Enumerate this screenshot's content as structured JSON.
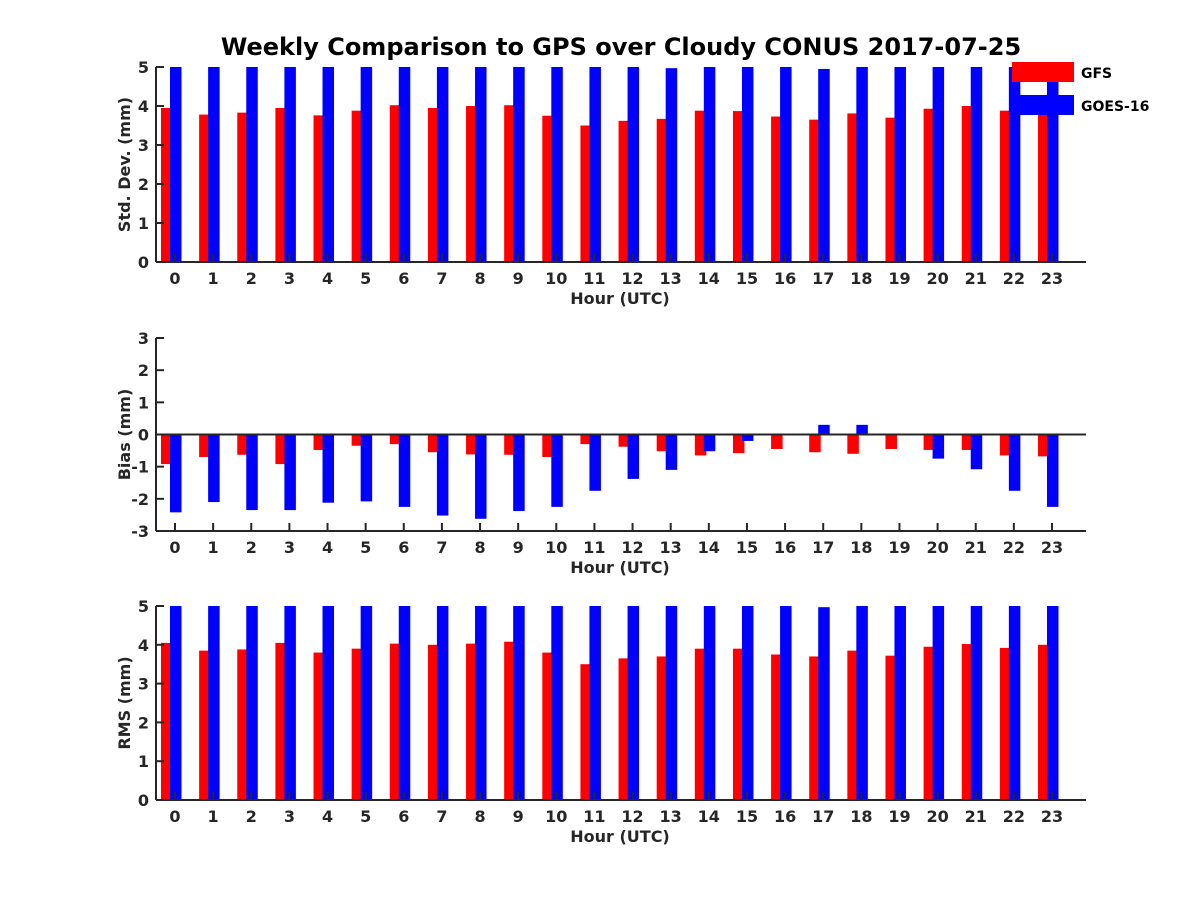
{
  "chart_data": [
    {
      "type": "bar",
      "title": "Weekly Comparison to GPS over Cloudy CONUS 2017-07-25",
      "xlabel": "Hour (UTC)",
      "ylabel": "Std. Dev. (mm)",
      "ylim": [
        0,
        5
      ],
      "yticks": [
        0,
        1,
        2,
        3,
        4,
        5
      ],
      "categories": [
        "0",
        "1",
        "2",
        "3",
        "4",
        "5",
        "6",
        "7",
        "8",
        "9",
        "10",
        "11",
        "12",
        "13",
        "14",
        "15",
        "16",
        "17",
        "18",
        "19",
        "20",
        "21",
        "22",
        "23"
      ],
      "legend": "top-right",
      "series": [
        {
          "name": "GFS",
          "color": "#ff0000",
          "values": [
            3.95,
            3.78,
            3.83,
            3.95,
            3.76,
            3.88,
            4.02,
            3.95,
            4.0,
            4.02,
            3.75,
            3.5,
            3.62,
            3.67,
            3.88,
            3.87,
            3.73,
            3.65,
            3.81,
            3.7,
            3.93,
            4.0,
            3.88,
            3.85
          ]
        },
        {
          "name": "GOES-16",
          "color": "#0000ff",
          "values": [
            5,
            5,
            5,
            5,
            5,
            5,
            5,
            5,
            5,
            5,
            5,
            5,
            5,
            4.97,
            5,
            5,
            5,
            4.95,
            5,
            5,
            5,
            5,
            5,
            5
          ]
        }
      ]
    },
    {
      "type": "bar",
      "title": "",
      "xlabel": "Hour (UTC)",
      "ylabel": "Bias (mm)",
      "ylim": [
        -3,
        3
      ],
      "yticks": [
        -3,
        -2,
        -1,
        0,
        1,
        2,
        3
      ],
      "categories": [
        "0",
        "1",
        "2",
        "3",
        "4",
        "5",
        "6",
        "7",
        "8",
        "9",
        "10",
        "11",
        "12",
        "13",
        "14",
        "15",
        "16",
        "17",
        "18",
        "19",
        "20",
        "21",
        "22",
        "23"
      ],
      "series": [
        {
          "name": "GFS",
          "color": "#ff0000",
          "values": [
            -0.92,
            -0.7,
            -0.63,
            -0.92,
            -0.48,
            -0.35,
            -0.3,
            -0.55,
            -0.62,
            -0.63,
            -0.7,
            -0.3,
            -0.38,
            -0.52,
            -0.65,
            -0.58,
            -0.45,
            -0.55,
            -0.6,
            -0.45,
            -0.48,
            -0.48,
            -0.65,
            -0.68
          ]
        },
        {
          "name": "GOES-16",
          "color": "#0000ff",
          "values": [
            -2.42,
            -2.1,
            -2.35,
            -2.35,
            -2.12,
            -2.08,
            -2.25,
            -2.52,
            -2.62,
            -2.38,
            -2.25,
            -1.75,
            -1.38,
            -1.1,
            -0.52,
            -0.2,
            0,
            0.3,
            0.3,
            0,
            -0.75,
            -1.08,
            -1.75,
            -2.25
          ]
        }
      ]
    },
    {
      "type": "bar",
      "title": "",
      "xlabel": "Hour (UTC)",
      "ylabel": "RMS (mm)",
      "ylim": [
        0,
        5
      ],
      "yticks": [
        0,
        1,
        2,
        3,
        4,
        5
      ],
      "categories": [
        "0",
        "1",
        "2",
        "3",
        "4",
        "5",
        "6",
        "7",
        "8",
        "9",
        "10",
        "11",
        "12",
        "13",
        "14",
        "15",
        "16",
        "17",
        "18",
        "19",
        "20",
        "21",
        "22",
        "23"
      ],
      "series": [
        {
          "name": "GFS",
          "color": "#ff0000",
          "values": [
            4.05,
            3.85,
            3.88,
            4.05,
            3.8,
            3.9,
            4.03,
            4.0,
            4.03,
            4.08,
            3.8,
            3.5,
            3.65,
            3.7,
            3.9,
            3.9,
            3.75,
            3.7,
            3.85,
            3.72,
            3.95,
            4.02,
            3.92,
            4.0
          ]
        },
        {
          "name": "GOES-16",
          "color": "#0000ff",
          "values": [
            5,
            5,
            5,
            5,
            5,
            5,
            5,
            5,
            5,
            5,
            5,
            5,
            5,
            5,
            5,
            5,
            5,
            4.97,
            5,
            5,
            5,
            5,
            5,
            5
          ]
        }
      ]
    }
  ]
}
